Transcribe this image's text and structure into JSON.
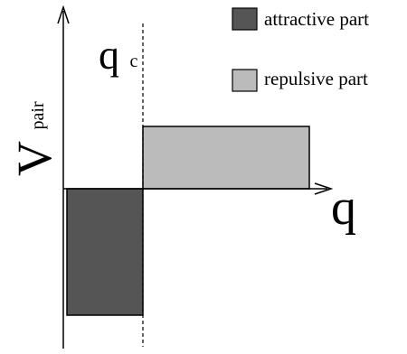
{
  "legend": {
    "attractive": {
      "label": "attractive part",
      "color": "#555555"
    },
    "repulsive": {
      "label": "repulsive part",
      "color": "#bbbbbb"
    }
  },
  "axes": {
    "y_label_main": "V",
    "y_label_sub": "pair",
    "x_label": "q"
  },
  "threshold": {
    "label_main": "q",
    "label_sub": "c"
  },
  "colors": {
    "line": "#000000",
    "background": "#ffffff"
  }
}
